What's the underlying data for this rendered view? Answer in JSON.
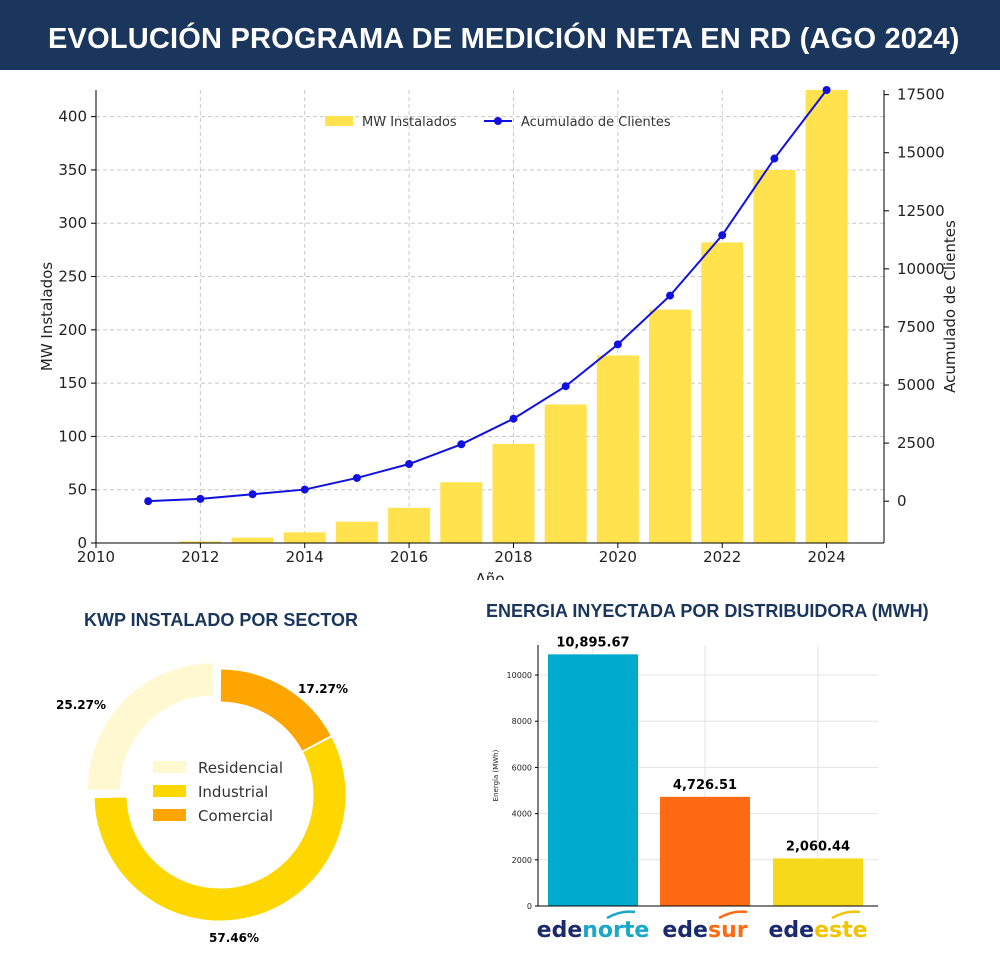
{
  "header": {
    "title": "EVOLUCIÓN PROGRAMA DE MEDICIÓN NETA EN RD (AGO 2024)"
  },
  "colors": {
    "header_bg": "#1b365d",
    "bar": "#ffe24d",
    "line": "#1010e0"
  },
  "chart_data": [
    {
      "type": "bar",
      "title": "",
      "x_ticks": [
        2010,
        2012,
        2014,
        2016,
        2018,
        2020,
        2022,
        2024
      ],
      "xlim": [
        2010,
        2025.1
      ],
      "xlabel": "Año",
      "ylabel": "MW Instalados",
      "ylim": [
        0,
        425
      ],
      "y_ticks": [
        0,
        50,
        100,
        150,
        200,
        250,
        300,
        350,
        400
      ],
      "y2label": "Acumulado de Clientes",
      "y2lim": [
        -1800,
        17700
      ],
      "y2_ticks": [
        0,
        2500,
        5000,
        7500,
        10000,
        12500,
        15000,
        17500
      ],
      "grid": true,
      "legend": "top-center",
      "series": [
        {
          "name": "MW Instalados",
          "type": "bar",
          "color": "#ffe24d",
          "x": [
            2011,
            2012,
            2013,
            2014,
            2015,
            2016,
            2017,
            2018,
            2019,
            2020,
            2021,
            2022,
            2023,
            2024
          ],
          "values": [
            0.3,
            1.5,
            5,
            10,
            20,
            33,
            57,
            93,
            130,
            176,
            219,
            282,
            350,
            426
          ]
        },
        {
          "name": "Acumulado de Clientes",
          "type": "line",
          "color": "#1010e0",
          "x": [
            2011,
            2012,
            2013,
            2014,
            2015,
            2016,
            2017,
            2018,
            2019,
            2020,
            2021,
            2022,
            2023,
            2024
          ],
          "values": [
            0,
            100,
            300,
            500,
            1000,
            1600,
            2450,
            3550,
            4950,
            6750,
            8850,
            11450,
            14750,
            17800
          ]
        }
      ]
    },
    {
      "type": "pie",
      "title": "KWP INSTALADO POR SECTOR",
      "legend": "center",
      "slices": [
        {
          "label": "Residencial",
          "value": 25.27,
          "text": "25.27%",
          "color": "#fff8d0"
        },
        {
          "label": "Industrial",
          "value": 57.46,
          "text": "57.46%",
          "color": "#ffd700"
        },
        {
          "label": "Comercial",
          "value": 17.27,
          "text": "17.27%",
          "color": "#ffa500"
        }
      ]
    },
    {
      "type": "bar",
      "title": "ENERGIA INYECTADA POR DISTRIBUIDORA (MWH)",
      "ylabel": "Energía (MWh)",
      "ylim": [
        0,
        11300
      ],
      "y_ticks": [
        0,
        2000,
        4000,
        6000,
        8000,
        10000
      ],
      "grid": true,
      "categories": [
        "edenorte",
        "edesur",
        "edeeste"
      ],
      "values": [
        10895.67,
        4726.51,
        2060.44
      ],
      "value_labels": [
        "10,895.67",
        "4,726.51",
        "2,060.44"
      ],
      "colors": [
        "#00aacc",
        "#ff6a12",
        "#f7d91c"
      ],
      "logos": [
        {
          "part1": "ede",
          "part2": "norte",
          "color1": "#1b2a6b",
          "color2": "#1aa7c9"
        },
        {
          "part1": "ede",
          "part2": "sur",
          "color1": "#1b2a6b",
          "color2": "#ff6a12"
        },
        {
          "part1": "ede",
          "part2": "este",
          "color1": "#1b2a6b",
          "color2": "#f2c400"
        }
      ]
    }
  ]
}
